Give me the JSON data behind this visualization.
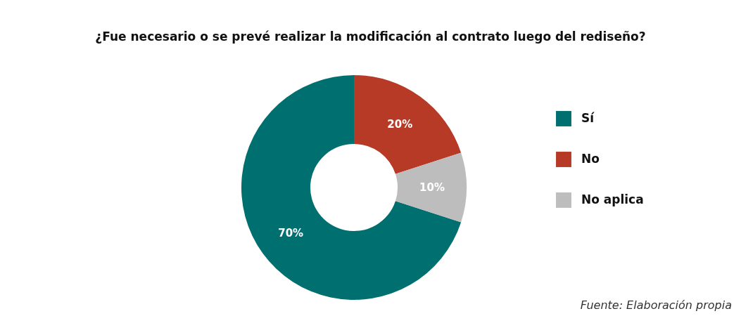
{
  "chart_data": {
    "type": "donut",
    "title": "¿Fue necesario o se prevé realizar la modificación al contrato luego del rediseño?",
    "categories": [
      "Sí",
      "No",
      "No aplica"
    ],
    "values": [
      70,
      20,
      10
    ],
    "colors": [
      "#006f6f",
      "#b73a26",
      "#bdbdbd"
    ],
    "value_labels": [
      "70%",
      "20%",
      "10%"
    ],
    "legend": "right",
    "annotations": [
      "Fuente: Elaboración propia"
    ]
  }
}
